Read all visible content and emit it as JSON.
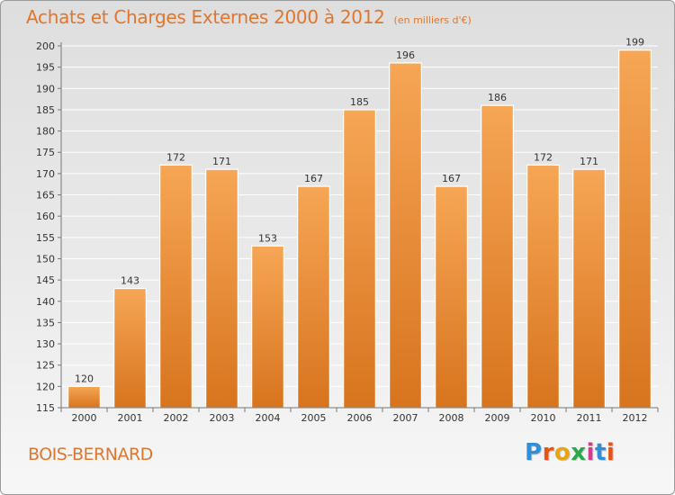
{
  "title": "Achats et Charges Externes 2000 à 2012",
  "unit": "(en milliers d'€)",
  "commune": "BOIS-BERNARD",
  "logo": {
    "letters": [
      "P",
      "r",
      "o",
      "x",
      "i",
      "t",
      "i"
    ],
    "colors": [
      "#2f8fd8",
      "#e6541a",
      "#e8a317",
      "#2aa84a",
      "#d63c8c",
      "#2f8fd8",
      "#e6541a"
    ]
  },
  "colors": {
    "bar_top": "#f6a655",
    "bar_bottom": "#d8741e",
    "bar_edge": "#ffffff",
    "grid": "#ffffff",
    "axis": "#777777",
    "text": "#333333",
    "accent": "#e0762d"
  },
  "chart_data": {
    "type": "bar",
    "categories": [
      "2000",
      "2001",
      "2002",
      "2003",
      "2004",
      "2005",
      "2006",
      "2007",
      "2008",
      "2009",
      "2010",
      "2011",
      "2012"
    ],
    "values": [
      120,
      143,
      172,
      171,
      153,
      167,
      185,
      196,
      167,
      186,
      172,
      171,
      199
    ],
    "ylim": [
      115,
      200
    ],
    "yticks": [
      115,
      120,
      125,
      130,
      135,
      140,
      145,
      150,
      155,
      160,
      165,
      170,
      175,
      180,
      185,
      190,
      195,
      200
    ],
    "grid": true,
    "data_labels": true
  }
}
